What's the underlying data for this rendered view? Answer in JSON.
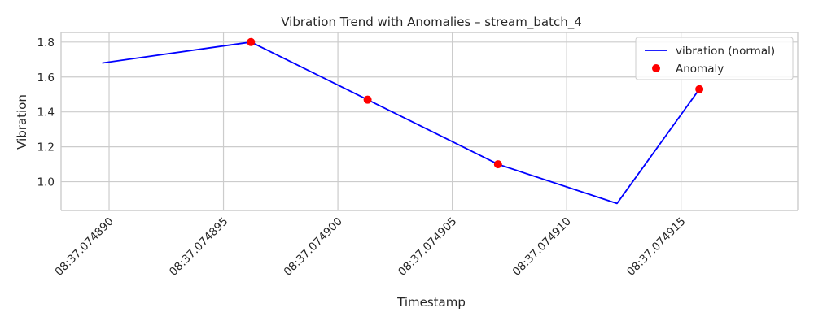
{
  "chart_data": {
    "type": "line",
    "title": "Vibration Trend with Anomalies – stream_batch_4",
    "xlabel": "Timestamp",
    "ylabel": "Vibration",
    "x_unit": "microseconds past 08:37:07",
    "xlim": [
      74887.9,
      74920.1
    ],
    "ylim": [
      0.835,
      1.855
    ],
    "x_ticks": [
      74890,
      74895,
      74900,
      74905,
      74910,
      74915
    ],
    "x_tick_labels": [
      "08:37.074890",
      "08:37.074895",
      "08:37.074900",
      "08:37.074905",
      "08:37.074910",
      "08:37.074915"
    ],
    "y_ticks": [
      1.0,
      1.2,
      1.4,
      1.6,
      1.8
    ],
    "y_tick_labels": [
      "1.0",
      "1.2",
      "1.4",
      "1.6",
      "1.8"
    ],
    "grid": true,
    "legend": "top-right",
    "series": [
      {
        "name": "vibration (normal)",
        "kind": "line",
        "color": "#0000ff",
        "x": [
          74889.7,
          74896.2,
          74901.3,
          74907.0,
          74912.2,
          74915.8
        ],
        "y": [
          1.68,
          1.8,
          1.47,
          1.1,
          0.875,
          1.53
        ]
      },
      {
        "name": "Anomaly",
        "kind": "scatter",
        "color": "#ff0000",
        "x": [
          74896.2,
          74901.3,
          74907.0,
          74915.8
        ],
        "y": [
          1.8,
          1.47,
          1.1,
          1.53
        ]
      }
    ]
  }
}
